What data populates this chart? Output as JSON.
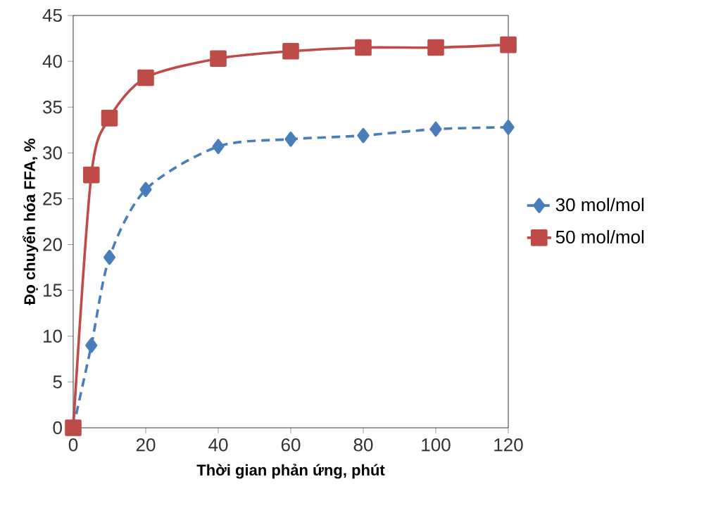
{
  "chart_data": {
    "type": "line",
    "xlabel": "Thời gian phản ứng, phút",
    "ylabel": "Đọ chuyển hóa FFA, %",
    "x": [
      0,
      5,
      10,
      20,
      40,
      60,
      80,
      100,
      120
    ],
    "series": [
      {
        "name": "30 mol/mol",
        "color": "#4a7ebb",
        "values": [
          0,
          9,
          18.6,
          26,
          30.7,
          31.5,
          31.9,
          32.6,
          32.8
        ],
        "marker": "diamond",
        "line_style": "dashed"
      },
      {
        "name": "50 mol/mol",
        "color": "#be4b48",
        "values": [
          0,
          27.6,
          33.8,
          38.2,
          40.3,
          41.1,
          41.5,
          41.5,
          41.8
        ],
        "marker": "square",
        "line_style": "solid"
      }
    ],
    "xlim": [
      0,
      120
    ],
    "xticks": [
      0,
      20,
      40,
      60,
      80,
      100,
      120
    ],
    "ylim": [
      0,
      45
    ],
    "yticks": [
      0,
      5,
      10,
      15,
      20,
      25,
      30,
      35,
      40,
      45
    ],
    "grid": false,
    "legend": "right"
  }
}
